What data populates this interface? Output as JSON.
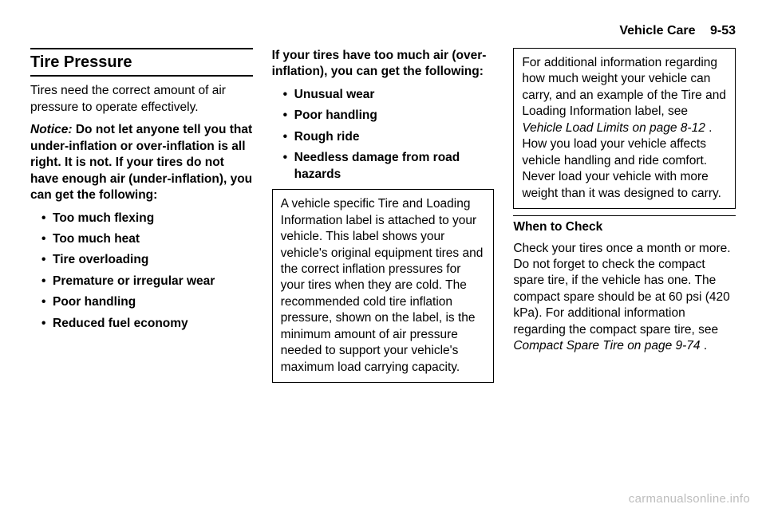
{
  "header": {
    "chapter": "Vehicle Care",
    "pagenum": "9-53"
  },
  "col1": {
    "section_title": "Tire Pressure",
    "intro": "Tires need the correct amount of air pressure to operate effectively.",
    "notice_label": "Notice:",
    "notice_text": " Do not let anyone tell you that under-inflation or over-inflation is all right. It is not. If your tires do not have enough air (under-inflation), you can get the following:",
    "bullets": [
      "Too much flexing",
      "Too much heat",
      "Tire overloading",
      "Premature or irregular wear",
      "Poor handling",
      "Reduced fuel economy"
    ]
  },
  "col2": {
    "over_head": "If your tires have too much air (over-inflation), you can get the following:",
    "bullets": [
      "Unusual wear",
      "Poor handling",
      "Rough ride",
      "Needless damage from road hazards"
    ],
    "box_text": "A vehicle specific Tire and Loading Information label is attached to your vehicle. This label shows your vehicle's original equipment tires and the correct inflation pressures for your tires when they are cold. The recommended cold tire inflation pressure, shown on the label, is the minimum amount of air pressure needed to support your vehicle's maximum load carrying capacity."
  },
  "col3": {
    "para1a": "For additional information regarding how much weight your vehicle can carry, and an example of the Tire and Loading Information label, see ",
    "para1_link": "Vehicle Load Limits on page 8-12",
    "para1b": " . How you load your vehicle affects vehicle handling and ride comfort. Never load your vehicle with more weight than it was designed to carry.",
    "subhead": "When to Check",
    "para2a": "Check your tires once a month or more. Do not forget to check the compact spare tire, if the vehicle has one. The compact spare should be at 60 psi (420 kPa). For additional information regarding the compact spare tire, see ",
    "para2_link": "Compact Spare Tire on page 9-74",
    "para2b": " ."
  },
  "watermark": "carmanualsonline.info"
}
